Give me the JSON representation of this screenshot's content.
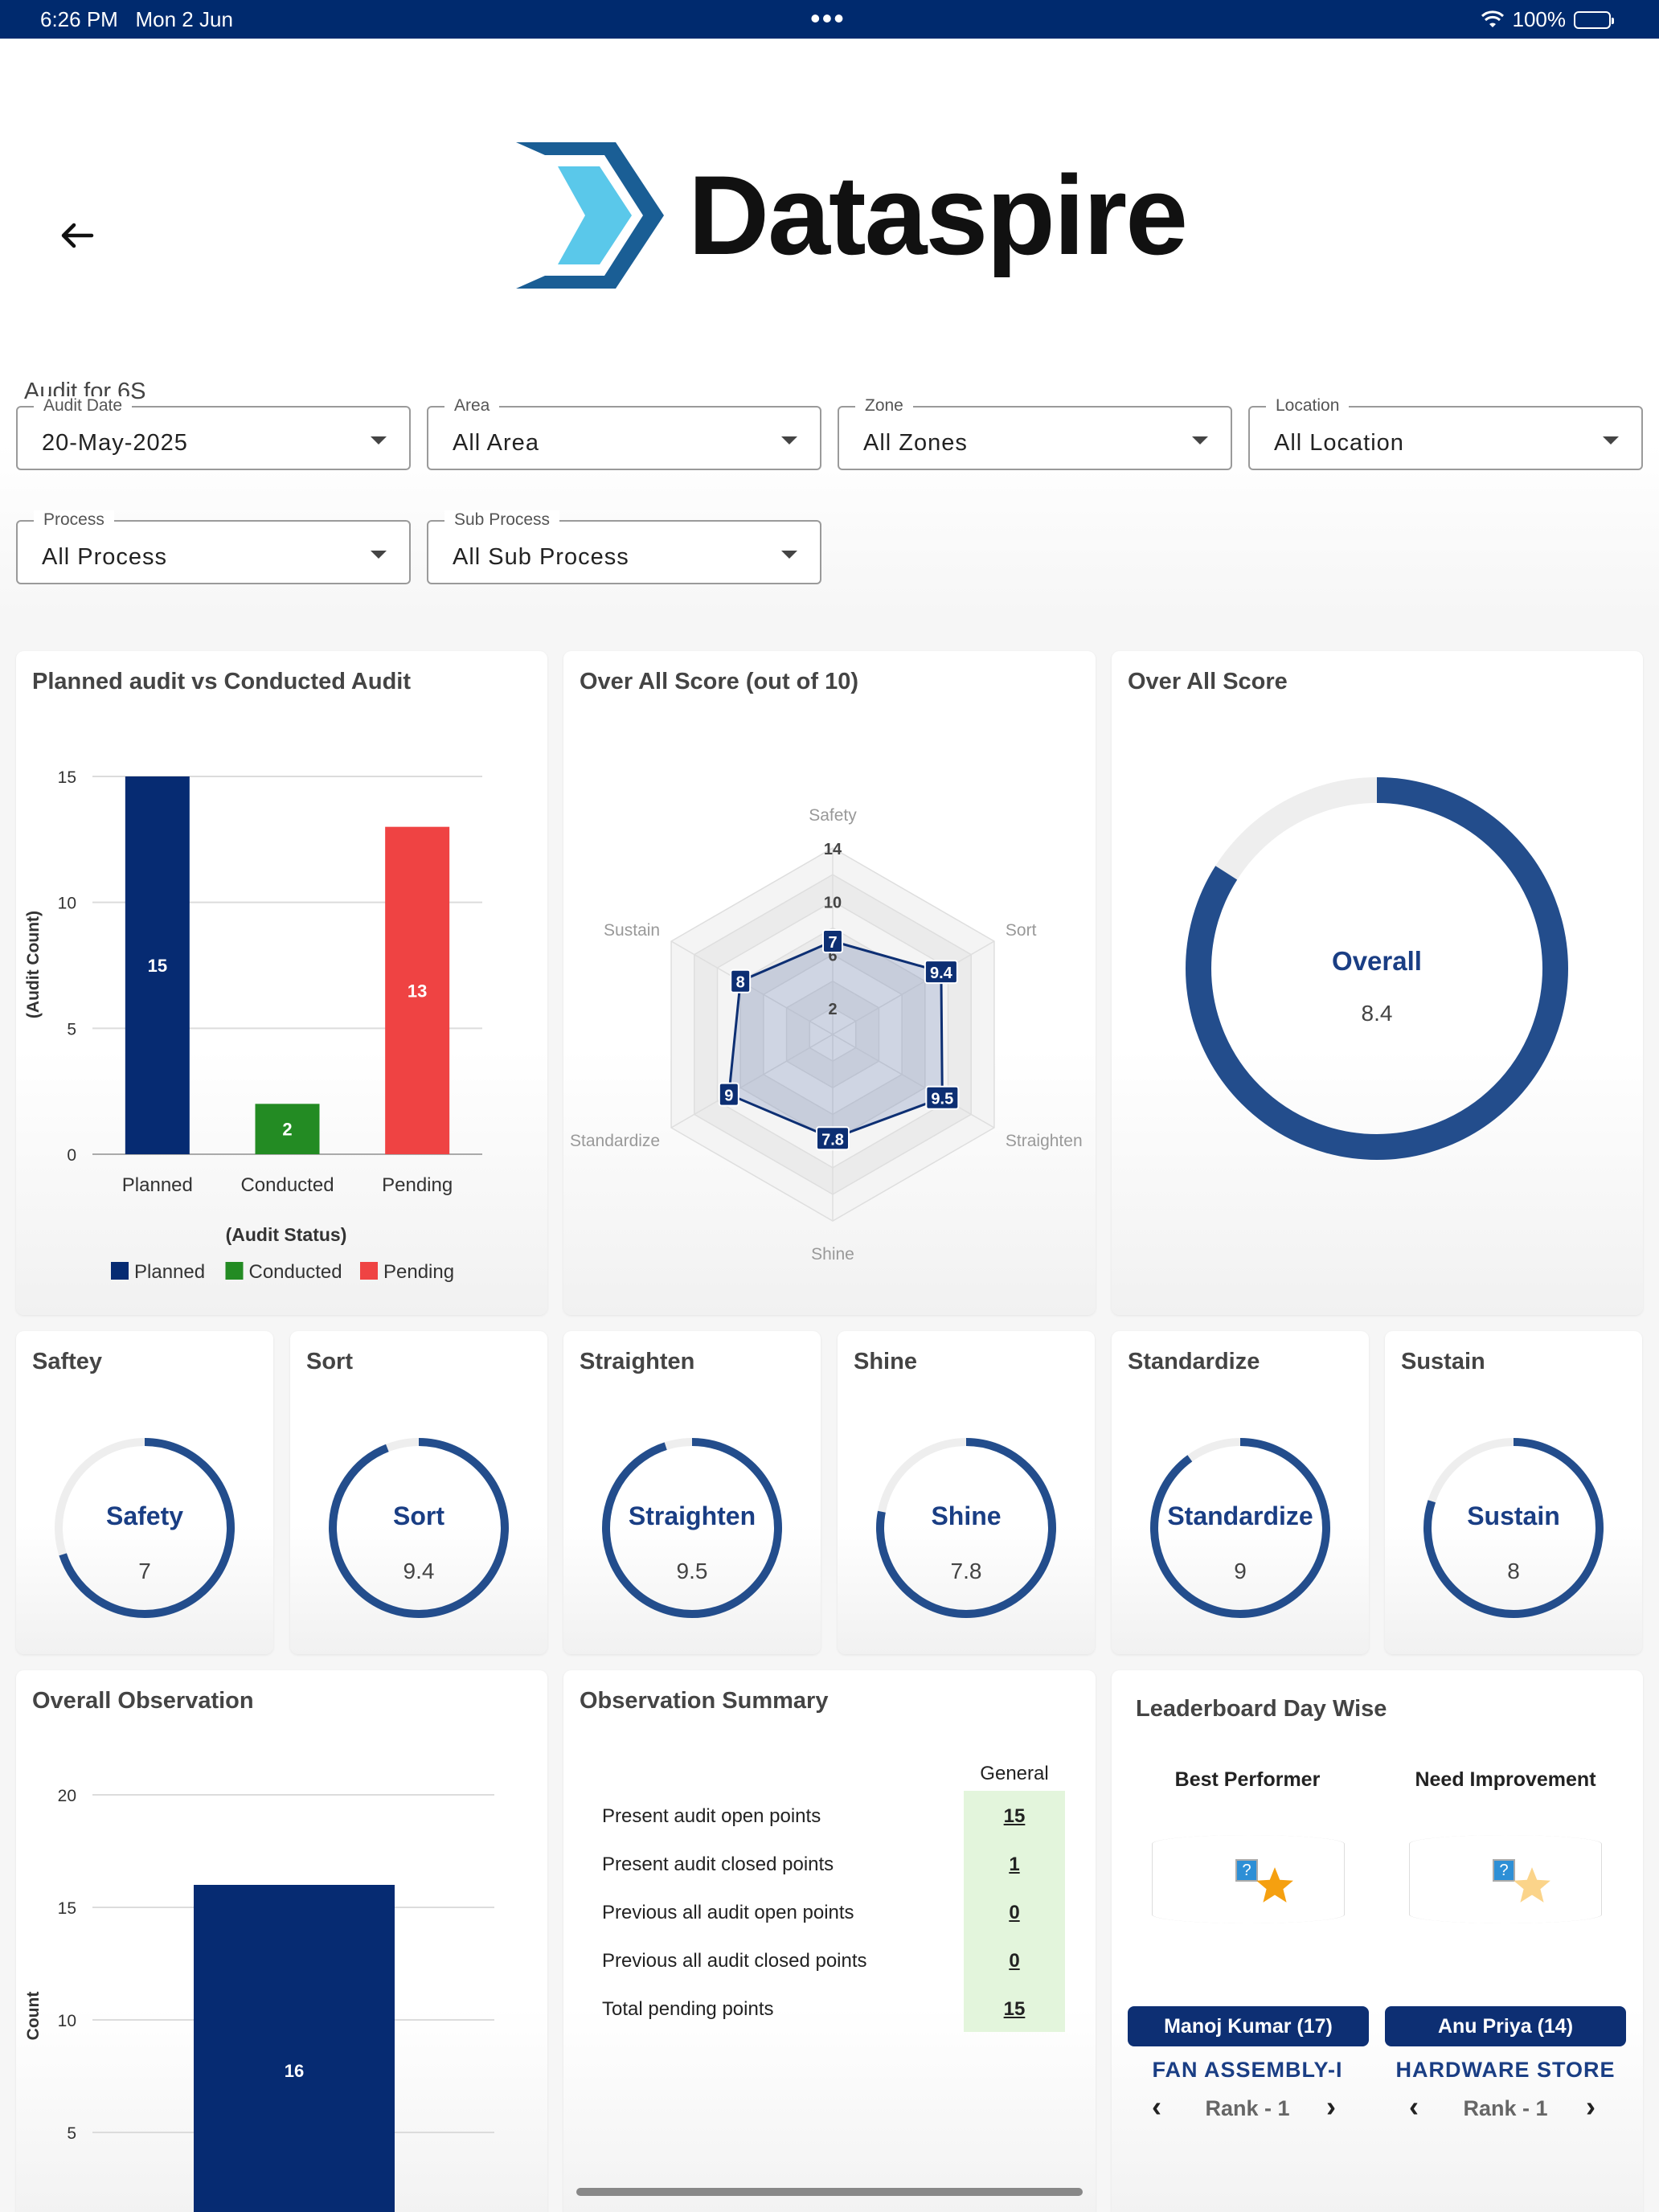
{
  "statusbar": {
    "time": "6:26 PM",
    "date": "Mon 2 Jun",
    "battery": "100%",
    "dots": "•••"
  },
  "brand": {
    "name": "Dataspire"
  },
  "page": {
    "title": "Audit for 6S"
  },
  "filters": [
    {
      "label": "Audit Date",
      "value": "20-May-2025"
    },
    {
      "label": "Area",
      "value": "All Area"
    },
    {
      "label": "Zone",
      "value": "All Zones"
    },
    {
      "label": "Location",
      "value": "All Location"
    },
    {
      "label": "Process",
      "value": "All Process"
    },
    {
      "label": "Sub Process",
      "value": "All Sub Process"
    }
  ],
  "cards": {
    "planned_vs_conducted": "Planned audit vs Conducted Audit",
    "overall_score_10": "Over All Score (out of 10)",
    "overall_score": "Over All Score",
    "overall_observation": "Overall Observation",
    "observation_summary": "Observation Summary",
    "leaderboard": "Leaderboard Day Wise"
  },
  "colors": {
    "navy": "#062b72",
    "green": "#238b23",
    "red": "#ef4343",
    "gauge": "#234d8c",
    "track": "#eeeeee"
  },
  "chart_data": [
    {
      "type": "bar",
      "categories": [
        "Planned",
        "Conducted",
        "Pending"
      ],
      "values": [
        15,
        2,
        13
      ],
      "xlabel": "(Audit Status)",
      "ylabel": "(Audit Count)",
      "ylim": [
        0,
        15
      ],
      "yticks": [
        "0",
        "5",
        "10",
        "15"
      ],
      "legend": [
        "Planned",
        "Conducted",
        "Pending"
      ],
      "legend_placement": "bottom",
      "grid": true
    },
    {
      "type": "radar",
      "axes": [
        "Safety",
        "Sort",
        "Straighten",
        "Shine",
        "Standardize",
        "Sustain"
      ],
      "values": [
        7,
        9.4,
        9.5,
        7.8,
        9,
        8
      ],
      "ticks": [
        "2",
        "6",
        "10",
        "14"
      ],
      "rmax": 14
    },
    {
      "type": "donut",
      "label": "Overall",
      "value": 8.4,
      "max": 10
    },
    {
      "type": "bar",
      "categories": [
        ""
      ],
      "values": [
        16
      ],
      "ylabel": "Count",
      "yticks": [
        "5",
        "10",
        "15",
        "20"
      ],
      "ylim": [
        0,
        20
      ],
      "grid": true
    }
  ],
  "mini_gauges": [
    {
      "title": "Saftey",
      "label": "Safety",
      "value": "7",
      "fraction": 0.7
    },
    {
      "title": "Sort",
      "label": "Sort",
      "value": "9.4",
      "fraction": 0.94
    },
    {
      "title": "Straighten",
      "label": "Straighten",
      "value": "9.5",
      "fraction": 0.95
    },
    {
      "title": "Shine",
      "label": "Shine",
      "value": "7.8",
      "fraction": 0.78
    },
    {
      "title": "Standardize",
      "label": "Standardize",
      "value": "9",
      "fraction": 0.9
    },
    {
      "title": "Sustain",
      "label": "Sustain",
      "value": "8",
      "fraction": 0.8
    }
  ],
  "observation_summary": {
    "column": "General",
    "rows": [
      {
        "label": "Present audit open points",
        "value": "15"
      },
      {
        "label": "Present audit closed points",
        "value": "1"
      },
      {
        "label": "Previous all audit open points",
        "value": "0"
      },
      {
        "label": "Previous all audit closed points",
        "value": "0"
      },
      {
        "label": "Total pending points",
        "value": "15"
      }
    ]
  },
  "leaderboard": {
    "best": {
      "heading": "Best Performer",
      "name": "Manoj Kumar (17)",
      "dept": "FAN ASSEMBLY-I",
      "rank": "Rank - 1"
    },
    "improve": {
      "heading": "Need Improvement",
      "name": "Anu Priya (14)",
      "dept": "HARDWARE STORE",
      "rank": "Rank - 1"
    }
  }
}
